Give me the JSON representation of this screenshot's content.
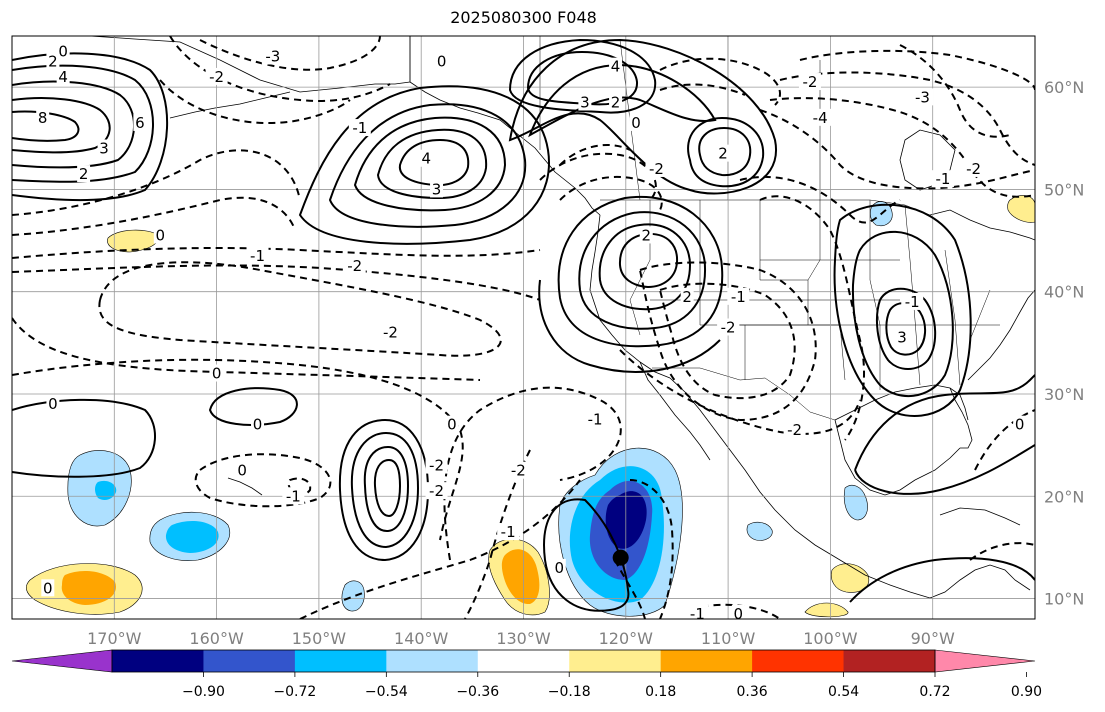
{
  "title": "2025080300 F048",
  "map": {
    "lon_range": [
      -180,
      -80
    ],
    "lat_range": [
      8,
      65
    ],
    "lon_ticks": [
      {
        "value": -170,
        "label": "170°W"
      },
      {
        "value": -160,
        "label": "160°W"
      },
      {
        "value": -150,
        "label": "150°W"
      },
      {
        "value": -140,
        "label": "140°W"
      },
      {
        "value": -130,
        "label": "130°W"
      },
      {
        "value": -120,
        "label": "120°W"
      },
      {
        "value": -110,
        "label": "110°W"
      },
      {
        "value": -100,
        "label": "100°W"
      },
      {
        "value": -90,
        "label": "90°W"
      }
    ],
    "lat_ticks": [
      {
        "value": 10,
        "label": "10°N"
      },
      {
        "value": 20,
        "label": "20°N"
      },
      {
        "value": 30,
        "label": "30°N"
      },
      {
        "value": 40,
        "label": "40°N"
      },
      {
        "value": 50,
        "label": "50°N"
      },
      {
        "value": 60,
        "label": "60°N"
      }
    ],
    "grid": true,
    "storm_marker": {
      "lon": -120.5,
      "lat": 14
    },
    "contour_labels": [
      {
        "text": "0",
        "lon": -175,
        "lat": 63.5
      },
      {
        "text": "2",
        "lon": -176,
        "lat": 62.5
      },
      {
        "text": "4",
        "lon": -175,
        "lat": 61
      },
      {
        "text": "6",
        "lon": -167.5,
        "lat": 56.5
      },
      {
        "text": "8",
        "lon": -177,
        "lat": 57
      },
      {
        "text": "3",
        "lon": -171,
        "lat": 54
      },
      {
        "text": "2",
        "lon": -173,
        "lat": 51.5
      },
      {
        "text": "-3",
        "lon": -154.5,
        "lat": 63
      },
      {
        "text": "-2",
        "lon": -160,
        "lat": 61
      },
      {
        "text": "-1",
        "lon": -146,
        "lat": 56
      },
      {
        "text": "0",
        "lon": -138,
        "lat": 62.5
      },
      {
        "text": "4",
        "lon": -139.5,
        "lat": 53
      },
      {
        "text": "3",
        "lon": -138.5,
        "lat": 50
      },
      {
        "text": "4",
        "lon": -121,
        "lat": 62
      },
      {
        "text": "3",
        "lon": -124,
        "lat": 58.5
      },
      {
        "text": "2",
        "lon": -121,
        "lat": 58.5
      },
      {
        "text": "0",
        "lon": -119,
        "lat": 56.5
      },
      {
        "text": "2",
        "lon": -110.5,
        "lat": 53.5
      },
      {
        "text": "-2",
        "lon": -117,
        "lat": 52
      },
      {
        "text": "-2",
        "lon": -102,
        "lat": 60.5
      },
      {
        "text": "-3",
        "lon": -91,
        "lat": 59
      },
      {
        "text": "-4",
        "lon": -101,
        "lat": 57
      },
      {
        "text": "-2",
        "lon": -86,
        "lat": 52
      },
      {
        "text": "-1",
        "lon": -89,
        "lat": 51
      },
      {
        "text": "0",
        "lon": -165.5,
        "lat": 45.5
      },
      {
        "text": "-1",
        "lon": -156,
        "lat": 43.5
      },
      {
        "text": "-2",
        "lon": -146.5,
        "lat": 42.5
      },
      {
        "text": "2",
        "lon": -118,
        "lat": 45.5
      },
      {
        "text": "2",
        "lon": -114,
        "lat": 39.5
      },
      {
        "text": "-1",
        "lon": -109,
        "lat": 39.5
      },
      {
        "text": "-2",
        "lon": -110,
        "lat": 36.5
      },
      {
        "text": "-1",
        "lon": -92,
        "lat": 39
      },
      {
        "text": "3",
        "lon": -93,
        "lat": 35.5
      },
      {
        "text": "-2",
        "lon": -143,
        "lat": 36
      },
      {
        "text": "0",
        "lon": -160,
        "lat": 32
      },
      {
        "text": "0",
        "lon": -176,
        "lat": 29
      },
      {
        "text": "0",
        "lon": -156,
        "lat": 27
      },
      {
        "text": "0",
        "lon": -137,
        "lat": 27
      },
      {
        "text": "-2",
        "lon": -138.5,
        "lat": 23
      },
      {
        "text": "-2",
        "lon": -138.5,
        "lat": 20.5
      },
      {
        "text": "0",
        "lon": -157.5,
        "lat": 22.5
      },
      {
        "text": "-1",
        "lon": -152.5,
        "lat": 20
      },
      {
        "text": "-2",
        "lon": -130.5,
        "lat": 22.5
      },
      {
        "text": "-2",
        "lon": -103.5,
        "lat": 26.5
      },
      {
        "text": "0",
        "lon": -81.5,
        "lat": 27
      },
      {
        "text": "-1",
        "lon": -131.5,
        "lat": 16.5
      },
      {
        "text": "0",
        "lon": -126.5,
        "lat": 13
      },
      {
        "text": "0",
        "lon": -176.5,
        "lat": 11
      },
      {
        "text": "-1",
        "lon": -113,
        "lat": 8.5
      },
      {
        "text": "0",
        "lon": -109,
        "lat": 8.5
      },
      {
        "text": "-1",
        "lon": -123,
        "lat": 27.5
      }
    ]
  },
  "colorbar": {
    "colors": [
      "#9933cc",
      "#000080",
      "#3355cc",
      "#00bfff",
      "#aee0ff",
      "#ffffff",
      "#ffee8f",
      "#ffa500",
      "#ff3300",
      "#b22222",
      "#ff88aa"
    ],
    "tick_labels": [
      "−0.90",
      "−0.72",
      "−0.54",
      "−0.36",
      "−0.18",
      "0.18",
      "0.36",
      "0.54",
      "0.72",
      "0.90"
    ]
  }
}
